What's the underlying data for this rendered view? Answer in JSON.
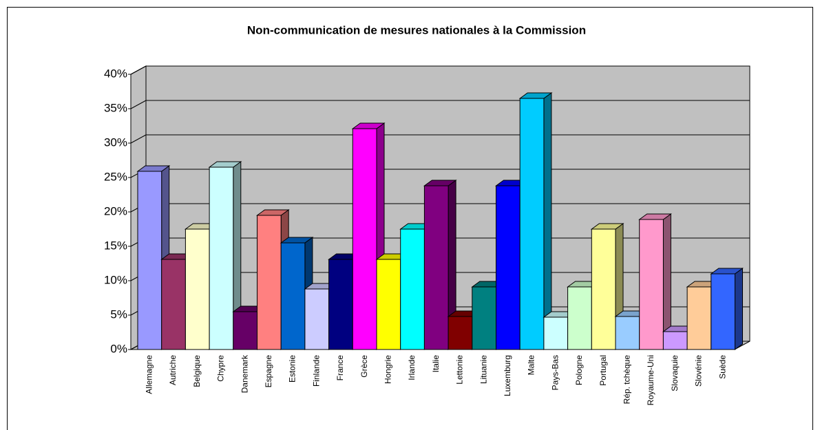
{
  "chart_data": {
    "type": "bar3d",
    "title": "Non-communication de mesures nationales à la Commission",
    "categories": [
      "Allemagne",
      "Autriche",
      "Belgique",
      "Chypre",
      "Danemark",
      "Espagne",
      "Estonie",
      "Finlande",
      "France",
      "Grèce",
      "Hongrie",
      "Irlande",
      "Italie",
      "Lettonie",
      "Lituanie",
      "Luxemburg",
      "Malte",
      "Pays-Bas",
      "Pologne",
      "Portugal",
      "Rép. tchèque",
      "Royaume-Uni",
      "Slovaquie",
      "Slovénie",
      "Suède"
    ],
    "values": [
      25.9,
      13.1,
      17.5,
      26.5,
      5.5,
      19.5,
      15.5,
      8.8,
      13.1,
      32.1,
      13.1,
      17.5,
      23.8,
      4.8,
      9.1,
      23.8,
      36.5,
      4.7,
      9.1,
      17.5,
      4.8,
      18.9,
      2.6,
      9.1,
      11
    ],
    "colors": [
      "#9999ff",
      "#993366",
      "#ffffcc",
      "#ccffff",
      "#660066",
      "#ff8080",
      "#0066cc",
      "#ccccff",
      "#000080",
      "#ff00ff",
      "#ffff00",
      "#00ffff",
      "#800080",
      "#800000",
      "#008080",
      "#0000ff",
      "#00ccff",
      "#ccffff",
      "#ccffcc",
      "#ffff99",
      "#99ccff",
      "#ff99cc",
      "#cc99ff",
      "#ffcc99",
      "#3366ff"
    ],
    "ylim": [
      0,
      40
    ],
    "yticks": [
      {
        "value": 0,
        "label": "0%"
      },
      {
        "value": 5,
        "label": "5%"
      },
      {
        "value": 10,
        "label": "10%"
      },
      {
        "value": 15,
        "label": "15%"
      },
      {
        "value": 20,
        "label": "20%"
      },
      {
        "value": 25,
        "label": "25%"
      },
      {
        "value": 30,
        "label": "30%"
      },
      {
        "value": 35,
        "label": "35%"
      },
      {
        "value": 40,
        "label": "40%"
      }
    ],
    "grid": true
  }
}
